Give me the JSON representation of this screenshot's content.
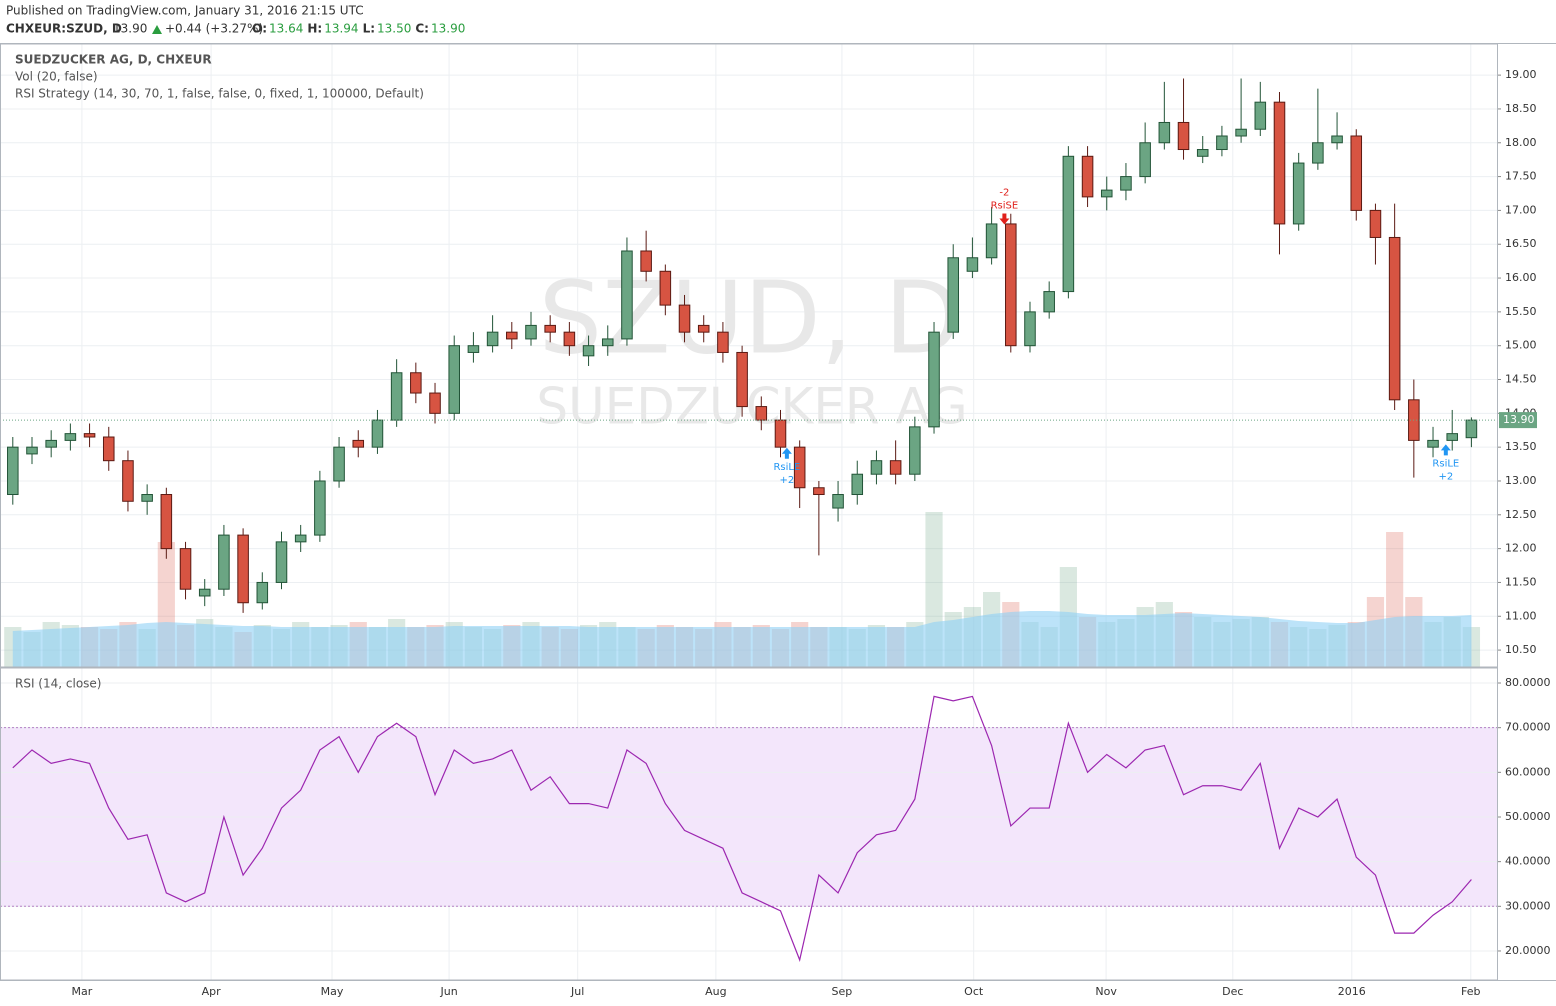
{
  "header": {
    "published": "Published on TradingView.com, January 31, 2016 21:15 UTC",
    "symbol": "CHXEUR:SZUD, D",
    "last": "13.90",
    "change": "+0.44 (+3.27%)",
    "ohlc": [
      {
        "label": "O:",
        "value": "13.64"
      },
      {
        "label": "H:",
        "value": "13.94"
      },
      {
        "label": "L:",
        "value": "13.50"
      },
      {
        "label": "C:",
        "value": "13.90"
      }
    ]
  },
  "chart_data": {
    "type": "candlestick",
    "title": "SUEDZUCKER AG, D, CHXEUR",
    "indicators": [
      "Vol (20, false)",
      "RSI Strategy (14, 30, 70, 1, false, false, 0, fixed, 1, 100000, Default)"
    ],
    "watermark": [
      "SZUD, D",
      "SUEDZUCKER AG"
    ],
    "x": [
      0,
      3,
      6,
      9,
      12,
      15,
      18,
      21,
      24,
      27,
      30,
      33,
      36,
      39,
      42,
      45,
      48,
      51,
      54,
      57,
      60,
      63,
      66,
      69,
      72,
      75,
      78,
      81,
      84,
      87,
      90,
      93,
      96,
      99,
      102,
      105,
      108,
      111,
      114,
      117,
      120,
      123,
      126,
      129,
      132,
      135,
      138,
      141,
      144,
      147,
      150,
      153,
      156,
      159,
      162,
      165,
      168,
      171,
      174,
      177,
      180,
      183,
      186,
      189,
      192,
      195,
      198,
      201,
      204,
      207,
      210,
      213,
      216,
      219,
      222,
      225,
      228
    ],
    "open": [
      12.8,
      13.4,
      13.5,
      13.6,
      13.7,
      13.65,
      13.3,
      12.7,
      12.8,
      12.0,
      11.3,
      11.4,
      12.2,
      11.2,
      11.5,
      12.1,
      12.2,
      13.0,
      13.6,
      13.5,
      13.9,
      14.6,
      14.3,
      14.0,
      14.9,
      15.0,
      15.2,
      15.1,
      15.3,
      15.2,
      14.85,
      15.0,
      15.1,
      16.4,
      16.1,
      15.6,
      15.3,
      15.2,
      14.9,
      14.1,
      13.9,
      13.5,
      12.9,
      12.6,
      12.8,
      13.1,
      13.3,
      13.1,
      13.8,
      15.2,
      16.1,
      16.3,
      16.8,
      15.0,
      15.5,
      15.8,
      17.8,
      17.2,
      17.3,
      17.5,
      18.0,
      18.3,
      17.8,
      17.9,
      18.1,
      18.2,
      18.6,
      16.8,
      17.7,
      18.0,
      18.1,
      17.0,
      16.6,
      14.2,
      13.5,
      13.6,
      13.64
    ],
    "high": [
      13.65,
      13.65,
      13.75,
      13.85,
      13.85,
      13.8,
      13.45,
      12.95,
      12.9,
      12.1,
      11.55,
      12.35,
      12.3,
      11.65,
      12.25,
      12.35,
      13.15,
      13.65,
      13.75,
      14.05,
      14.8,
      14.75,
      14.45,
      15.15,
      15.2,
      15.45,
      15.35,
      15.5,
      15.45,
      15.35,
      15.15,
      15.3,
      16.6,
      16.7,
      16.2,
      15.75,
      15.45,
      15.35,
      15.0,
      14.25,
      14.05,
      13.6,
      13.0,
      13.0,
      13.3,
      13.45,
      13.6,
      13.95,
      15.35,
      16.5,
      16.6,
      17.05,
      16.95,
      15.65,
      15.95,
      17.95,
      17.95,
      17.5,
      17.7,
      18.3,
      18.9,
      18.95,
      18.1,
      18.25,
      18.95,
      18.9,
      18.75,
      17.85,
      18.8,
      18.45,
      18.2,
      17.1,
      17.1,
      14.5,
      13.8,
      14.05,
      13.94
    ],
    "low": [
      12.65,
      13.25,
      13.35,
      13.45,
      13.5,
      13.15,
      12.55,
      12.5,
      11.85,
      11.25,
      11.15,
      11.3,
      11.05,
      11.1,
      11.4,
      11.95,
      12.1,
      12.9,
      13.35,
      13.4,
      13.8,
      14.15,
      13.85,
      13.9,
      14.75,
      14.9,
      14.95,
      15.0,
      15.05,
      14.85,
      14.7,
      14.85,
      15.0,
      15.95,
      15.45,
      15.05,
      15.05,
      14.75,
      13.95,
      13.75,
      13.35,
      12.6,
      11.9,
      12.4,
      12.65,
      12.95,
      12.95,
      13.0,
      13.7,
      15.1,
      16.0,
      16.2,
      14.9,
      14.9,
      15.4,
      15.7,
      17.05,
      17.0,
      17.15,
      17.4,
      17.9,
      17.75,
      17.7,
      17.8,
      18.0,
      18.1,
      16.35,
      16.7,
      17.6,
      17.9,
      16.85,
      16.2,
      14.05,
      13.05,
      13.35,
      13.45,
      13.5
    ],
    "close": [
      13.5,
      13.5,
      13.6,
      13.7,
      13.65,
      13.3,
      12.7,
      12.8,
      12.0,
      11.4,
      11.4,
      12.2,
      11.2,
      11.5,
      12.1,
      12.2,
      13.0,
      13.5,
      13.5,
      13.9,
      14.6,
      14.3,
      14.0,
      15.0,
      15.0,
      15.2,
      15.1,
      15.3,
      15.2,
      15.0,
      15.0,
      15.1,
      16.4,
      16.1,
      15.6,
      15.2,
      15.2,
      14.9,
      14.1,
      13.9,
      13.5,
      12.9,
      12.8,
      12.8,
      13.1,
      13.3,
      13.1,
      13.8,
      15.2,
      16.3,
      16.3,
      16.8,
      15.0,
      15.5,
      15.8,
      17.8,
      17.2,
      17.3,
      17.5,
      18.0,
      18.3,
      17.9,
      17.9,
      18.1,
      18.2,
      18.6,
      16.8,
      17.7,
      18.0,
      18.1,
      17.0,
      16.6,
      14.2,
      13.6,
      13.6,
      13.7,
      13.9
    ],
    "up_color": "#6ba583",
    "down_color": "#d75442",
    "last_price": {
      "value": 13.9,
      "label": "13.90"
    },
    "xlim": [
      -2,
      232
    ],
    "xticks": [
      {
        "value": 10.8,
        "label": "Mar"
      },
      {
        "value": 31.0,
        "label": "Apr"
      },
      {
        "value": 49.9,
        "label": "May"
      },
      {
        "value": 68.2,
        "label": "Jun"
      },
      {
        "value": 88.3,
        "label": "Jul"
      },
      {
        "value": 109.9,
        "label": "Aug"
      },
      {
        "value": 129.6,
        "label": "Sep"
      },
      {
        "value": 150.2,
        "label": "Oct"
      },
      {
        "value": 170.9,
        "label": "Nov"
      },
      {
        "value": 190.7,
        "label": "Dec"
      },
      {
        "value": 209.3,
        "label": "2016"
      },
      {
        "value": 227.9,
        "label": "Feb"
      }
    ],
    "ylim": [
      10.25,
      19.46
    ],
    "yticks": [
      {
        "value": 10.5,
        "label": "10.50"
      },
      {
        "value": 11,
        "label": "11.00"
      },
      {
        "value": 11.5,
        "label": "11.50"
      },
      {
        "value": 12,
        "label": "12.00"
      },
      {
        "value": 12.5,
        "label": "12.50"
      },
      {
        "value": 13,
        "label": "13.00"
      },
      {
        "value": 13.5,
        "label": "13.50"
      },
      {
        "value": 14,
        "label": "14.00"
      },
      {
        "value": 14.5,
        "label": "14.50"
      },
      {
        "value": 15,
        "label": "15.00"
      },
      {
        "value": 15.5,
        "label": "15.50"
      },
      {
        "value": 16,
        "label": "16.00"
      },
      {
        "value": 16.5,
        "label": "16.50"
      },
      {
        "value": 17,
        "label": "17.00"
      },
      {
        "value": 17.5,
        "label": "17.50"
      },
      {
        "value": 18,
        "label": "18.00"
      },
      {
        "value": 18.5,
        "label": "18.50"
      },
      {
        "value": 19,
        "label": "19.00"
      }
    ],
    "grid": true,
    "signals": [
      {
        "label": "RsiLE",
        "qty": "+2",
        "x": 121,
        "y": 13.55,
        "color": "#2196f3",
        "dir": "up"
      },
      {
        "label": "RsiLE",
        "qty": "+2",
        "x": 224,
        "y": 13.6,
        "color": "#2196f3",
        "dir": "up"
      },
      {
        "label": "RsiSE",
        "qty": "-2",
        "x": 155,
        "y": 16.85,
        "color": "#e0201b",
        "dir": "down"
      }
    ],
    "volume": {
      "values": [
        40,
        35,
        45,
        42,
        40,
        38,
        45,
        38,
        125,
        42,
        48,
        40,
        35,
        42,
        38,
        45,
        40,
        42,
        45,
        40,
        48,
        40,
        42,
        45,
        40,
        38,
        42,
        45,
        40,
        38,
        42,
        45,
        40,
        38,
        42,
        40,
        38,
        45,
        40,
        42,
        38,
        45,
        40,
        40,
        38,
        42,
        40,
        45,
        155,
        55,
        60,
        75,
        65,
        45,
        40,
        100,
        50,
        45,
        48,
        60,
        65,
        55,
        50,
        45,
        48,
        50,
        45,
        40,
        38,
        42,
        45,
        70,
        135,
        70,
        45,
        50,
        40
      ],
      "ma": [
        36,
        37,
        38,
        39,
        40,
        41,
        42,
        44,
        45,
        44,
        43,
        42,
        41,
        41,
        40,
        40,
        40,
        40,
        40,
        40,
        40,
        40,
        40,
        41,
        41,
        41,
        41,
        41,
        41,
        41,
        40,
        40,
        40,
        40,
        40,
        40,
        40,
        40,
        40,
        40,
        40,
        40,
        40,
        40,
        40,
        40,
        40,
        40,
        45,
        47,
        50,
        53,
        55,
        56,
        56,
        55,
        53,
        52,
        52,
        52,
        53,
        54,
        53,
        52,
        51,
        50,
        48,
        46,
        45,
        44,
        44,
        47,
        50,
        51,
        51,
        51,
        52
      ],
      "vlim": [
        0,
        250
      ],
      "ma_color": "#8fd0f5"
    },
    "rsi": {
      "title": "RSI (14, close)",
      "color": "#9c27b0",
      "band": [
        30,
        70
      ],
      "band_color": "#f3e6fb",
      "values": [
        61,
        65,
        62,
        63,
        62,
        52,
        45,
        46,
        33,
        31,
        33,
        50,
        37,
        43,
        52,
        56,
        65,
        68,
        60,
        68,
        71,
        68,
        55,
        65,
        62,
        63,
        65,
        56,
        59,
        53,
        53,
        52,
        65,
        62,
        53,
        47,
        45,
        43,
        33,
        31,
        29,
        18,
        37,
        33,
        42,
        46,
        47,
        54,
        77,
        76,
        77,
        66,
        48,
        52,
        52,
        71,
        60,
        64,
        61,
        65,
        66,
        55,
        57,
        57,
        56,
        62,
        43,
        52,
        50,
        54,
        41,
        37,
        24,
        24,
        28,
        31,
        36
      ],
      "ylim": [
        13.5,
        83.36
      ],
      "yticks": [
        {
          "value": 20,
          "label": "20.0000"
        },
        {
          "value": 30,
          "label": "30.0000"
        },
        {
          "value": 40,
          "label": "40.0000"
        },
        {
          "value": 50,
          "label": "50.0000"
        },
        {
          "value": 60,
          "label": "60.0000"
        },
        {
          "value": 70,
          "label": "70.0000"
        },
        {
          "value": 80,
          "label": "80.0000"
        }
      ]
    }
  }
}
